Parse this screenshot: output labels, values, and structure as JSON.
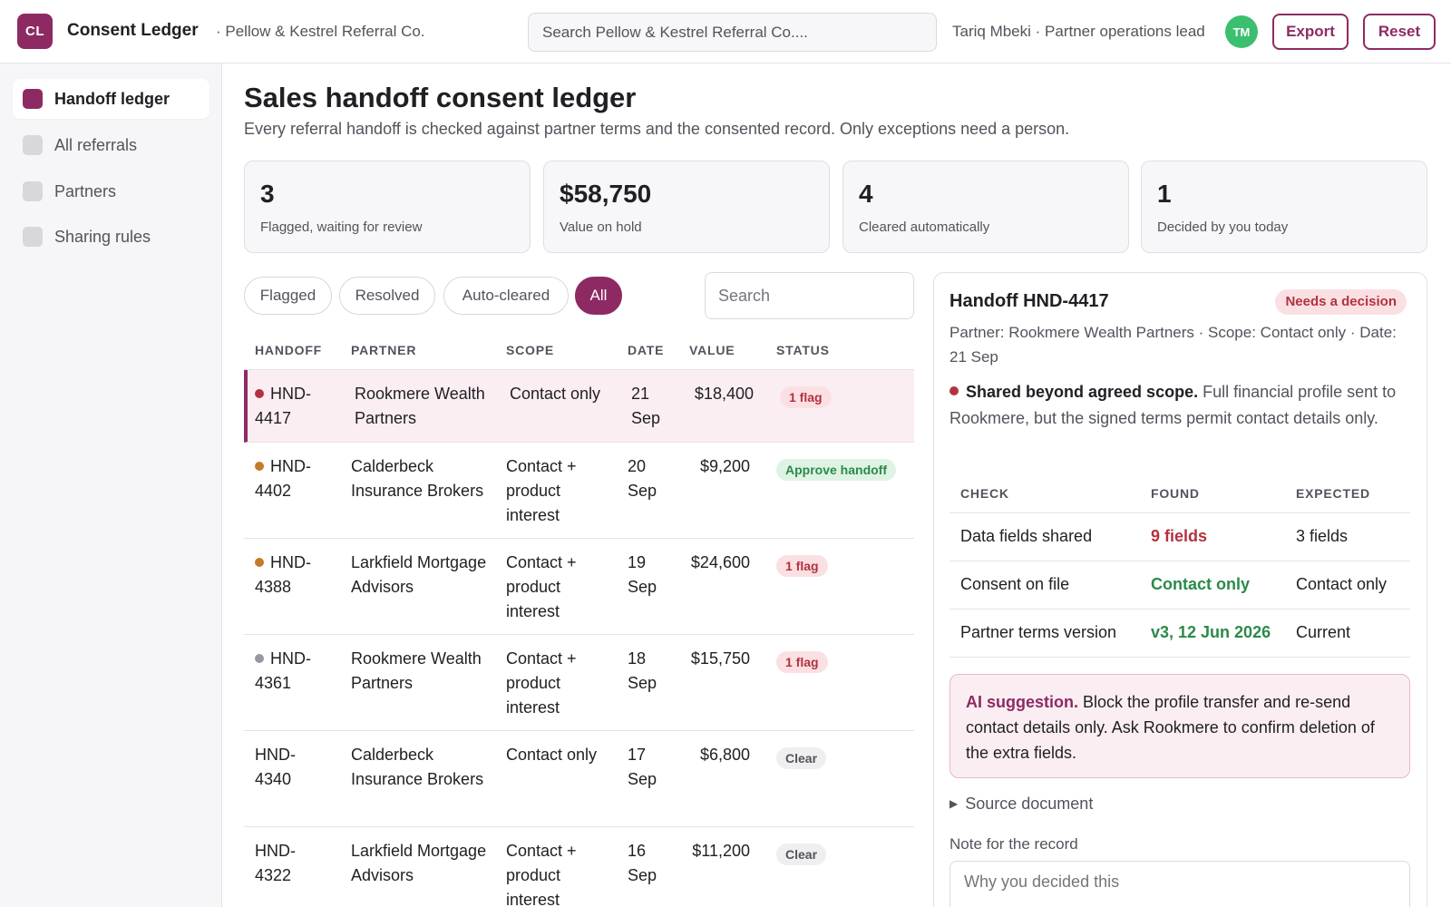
{
  "header": {
    "logo": "CL",
    "app_name": "Consent Ledger",
    "org": "· Pellow & Kestrel Referral Co.",
    "search_placeholder": "Search Pellow & Kestrel Referral Co....",
    "user": "Tariq Mbeki · Partner operations lead",
    "avatar": "TM",
    "export_label": "Export",
    "reset_label": "Reset"
  },
  "sidebar": {
    "items": [
      {
        "label": "Handoff ledger",
        "active": true
      },
      {
        "label": "All referrals",
        "active": false
      },
      {
        "label": "Partners",
        "active": false
      },
      {
        "label": "Sharing rules",
        "active": false
      }
    ]
  },
  "page": {
    "title": "Sales handoff consent ledger",
    "subtitle": "Every referral handoff is checked against partner terms and the consented record. Only exceptions need a person."
  },
  "stats": [
    {
      "value": "3",
      "label": "Flagged, waiting for review"
    },
    {
      "value": "$58,750",
      "label": "Value on hold"
    },
    {
      "value": "4",
      "label": "Cleared automatically"
    },
    {
      "value": "1",
      "label": "Decided by you today"
    }
  ],
  "filters": {
    "chips": [
      "Flagged",
      "Resolved",
      "Auto-cleared",
      "All"
    ],
    "active": "All",
    "search_placeholder": "Search"
  },
  "table": {
    "columns": [
      "HANDOFF",
      "PARTNER",
      "SCOPE",
      "DATE",
      "VALUE",
      "STATUS"
    ],
    "rows": [
      {
        "id": "HND-4417",
        "id_lines": [
          "HND-",
          "4417"
        ],
        "dot": "#b3323f",
        "partner": "Rookmere Wealth Partners",
        "scope": "Contact only",
        "date_lines": [
          "21",
          "Sep"
        ],
        "value": "$18,400",
        "status": "1 flag",
        "status_type": "flag"
      },
      {
        "id": "HND-4402",
        "id_lines": [
          "HND-",
          "4402"
        ],
        "dot": "#c47a2c",
        "partner": "Calderbeck Insurance Brokers",
        "scope": "Contact + product interest",
        "date_lines": [
          "20",
          "Sep"
        ],
        "value": "$9,200",
        "status": "Approve handoff",
        "status_type": "approve"
      },
      {
        "id": "HND-4388",
        "id_lines": [
          "HND-",
          "4388"
        ],
        "dot": "#c47a2c",
        "partner": "Larkfield Mortgage Advisors",
        "scope": "Contact + product interest",
        "date_lines": [
          "19",
          "Sep"
        ],
        "value": "$24,600",
        "status": "1 flag",
        "status_type": "flag"
      },
      {
        "id": "HND-4361",
        "id_lines": [
          "HND-",
          "4361"
        ],
        "dot": "#9a97a1",
        "partner": "Rookmere Wealth Partners",
        "scope": "Contact + product interest",
        "date_lines": [
          "18",
          "Sep"
        ],
        "value": "$15,750",
        "status": "1 flag",
        "status_type": "flag"
      },
      {
        "id": "HND-4340",
        "id_lines": [
          "HND-",
          "4340"
        ],
        "dot": "",
        "partner": "Calderbeck Insurance Brokers",
        "scope": "Contact only",
        "date_lines": [
          "17",
          "Sep"
        ],
        "value": "$6,800",
        "status": "Clear",
        "status_type": "clear"
      },
      {
        "id": "HND-4322",
        "id_lines": [
          "HND-",
          "4322"
        ],
        "dot": "",
        "partner": "Larkfield Mortgage Advisors",
        "scope": "Contact + product interest",
        "date_lines": [
          "16",
          "Sep"
        ],
        "value": "$11,200",
        "status": "Clear",
        "status_type": "clear"
      }
    ]
  },
  "detail": {
    "title": "Handoff HND-4417",
    "badge": "Needs a decision",
    "meta": "Partner: Rookmere Wealth Partners · Scope: Contact only · Date: 21 Sep",
    "issue_strong": "Shared beyond agreed scope.",
    "issue_text": " Full financial profile sent to Rookmere, but the signed terms permit contact details only.",
    "check_columns": [
      "CHECK",
      "FOUND",
      "EXPECTED"
    ],
    "checks": [
      {
        "check": "Data fields shared",
        "found": "9 fields",
        "found_type": "bad",
        "expected": "3 fields"
      },
      {
        "check": "Consent on file",
        "found": "Contact only",
        "found_type": "ok",
        "expected": "Contact only"
      },
      {
        "check": "Partner terms version",
        "found": "v3, 12 Jun 2026",
        "found_type": "ok",
        "expected": "Current"
      }
    ],
    "ai_strong": "AI suggestion.",
    "ai_text": " Block the profile transfer and re-send contact details only. Ask Rookmere to confirm deletion of the extra fields.",
    "source_label": "Source document",
    "note_label": "Note for the record",
    "note_placeholder": "Why you decided this"
  },
  "colors": {
    "accent": "#8e2a63",
    "flag": "#b3323f",
    "ok": "#2b8a48",
    "avatar": "#3cbf6e"
  }
}
